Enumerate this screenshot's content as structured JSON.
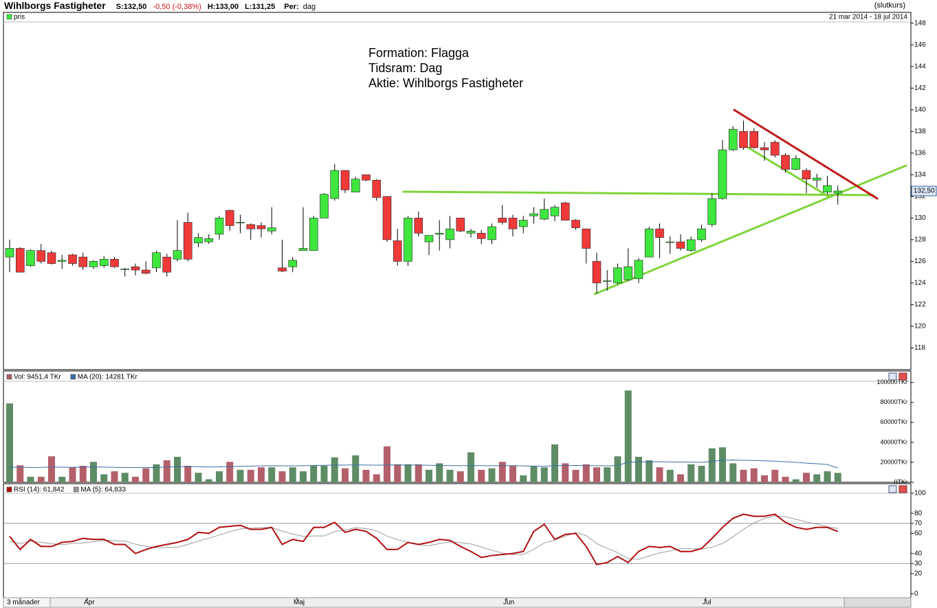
{
  "header": {
    "title": "Wihlborgs Fastigheter",
    "last": "S:132,50",
    "change": "-0,50 (-0,38%)",
    "high": "H:133,00",
    "low": "L:131,25",
    "period_label": "Per:",
    "period": "dag",
    "mode": "(slutkurs)"
  },
  "chart_data": [
    {
      "type": "candlestick",
      "legend": "pris",
      "date_range": "21 mar 2014 - 18 jul 2014",
      "annotation": [
        "Formation: Flagga",
        "Tidsram: Dag",
        "Aktie: Wihlborgs Fastigheter"
      ],
      "categories": [
        null,
        null,
        null,
        null,
        null,
        null,
        null,
        null,
        "Apr",
        null,
        null,
        null,
        null,
        null,
        null,
        null,
        null,
        null,
        null,
        null,
        null,
        null,
        null,
        null,
        null,
        null,
        null,
        null,
        "Maj",
        null,
        null,
        null,
        null,
        null,
        null,
        null,
        null,
        null,
        null,
        null,
        null,
        null,
        null,
        null,
        null,
        null,
        null,
        null,
        "Jun",
        null,
        null,
        null,
        null,
        null,
        null,
        null,
        null,
        null,
        null,
        null,
        null,
        null,
        null,
        null,
        null,
        null,
        null,
        "Jul",
        null,
        null,
        null,
        null,
        null,
        null,
        null,
        null,
        null,
        null,
        null,
        null
      ],
      "ohlc": [
        [
          126.4,
          128.0,
          125.0,
          127.2
        ],
        [
          127.2,
          127.3,
          125.0,
          125.0
        ],
        [
          125.6,
          127.1,
          125.5,
          127.0
        ],
        [
          127.0,
          127.6,
          125.8,
          126.0
        ],
        [
          126.8,
          127.0,
          125.7,
          125.8
        ],
        [
          126.0,
          126.6,
          125.3,
          126.1
        ],
        [
          126.6,
          126.7,
          125.6,
          125.8
        ],
        [
          126.4,
          126.8,
          125.2,
          125.5
        ],
        [
          125.5,
          126.1,
          125.3,
          126.0
        ],
        [
          125.6,
          126.5,
          125.4,
          126.2
        ],
        [
          126.2,
          126.4,
          125.4,
          125.5
        ],
        [
          125.3,
          125.4,
          124.6,
          125.3
        ],
        [
          125.5,
          125.8,
          124.7,
          125.2
        ],
        [
          125.2,
          126.0,
          124.8,
          124.9
        ],
        [
          125.4,
          127.0,
          125.0,
          126.8
        ],
        [
          126.4,
          126.7,
          124.6,
          125.0
        ],
        [
          126.2,
          129.8,
          126.0,
          127.0
        ],
        [
          129.6,
          130.5,
          126.0,
          126.2
        ],
        [
          127.7,
          128.6,
          127.3,
          128.2
        ],
        [
          127.8,
          128.5,
          127.6,
          128.1
        ],
        [
          128.5,
          130.2,
          128.0,
          130.0
        ],
        [
          130.7,
          130.8,
          128.8,
          129.3
        ],
        [
          129.6,
          130.3,
          128.6,
          129.6
        ],
        [
          129.4,
          129.5,
          128.0,
          129.0
        ],
        [
          129.3,
          129.6,
          128.2,
          129.0
        ],
        [
          128.8,
          131.0,
          128.5,
          129.1
        ],
        [
          125.4,
          128.0,
          125.0,
          125.1
        ],
        [
          125.5,
          126.4,
          125.0,
          126.1
        ],
        [
          127.0,
          131.0,
          127.0,
          127.2
        ],
        [
          127.0,
          130.2,
          127.0,
          130.0
        ],
        [
          130.0,
          132.3,
          130.0,
          132.2
        ],
        [
          131.8,
          135.0,
          131.6,
          134.4
        ],
        [
          134.4,
          134.4,
          132.3,
          132.6
        ],
        [
          132.4,
          133.8,
          132.4,
          133.6
        ],
        [
          134.0,
          134.0,
          133.4,
          133.5
        ],
        [
          133.5,
          133.6,
          131.6,
          131.9
        ],
        [
          132.0,
          132.0,
          127.8,
          128.0
        ],
        [
          127.9,
          129.0,
          125.6,
          126.0
        ],
        [
          126.0,
          130.2,
          125.6,
          130.0
        ],
        [
          130.0,
          130.6,
          128.3,
          128.6
        ],
        [
          127.8,
          128.3,
          126.6,
          128.4
        ],
        [
          128.5,
          129.8,
          127.0,
          128.6
        ],
        [
          128.0,
          130.2,
          127.2,
          129.0
        ],
        [
          130.0,
          130.0,
          128.7,
          128.8
        ],
        [
          128.6,
          129.0,
          128.2,
          128.8
        ],
        [
          128.6,
          128.9,
          127.6,
          128.1
        ],
        [
          128.0,
          129.5,
          127.6,
          129.2
        ],
        [
          130.0,
          131.2,
          129.4,
          129.6
        ],
        [
          130.0,
          130.3,
          128.3,
          129.0
        ],
        [
          129.2,
          130.2,
          128.6,
          129.8
        ],
        [
          130.2,
          131.0,
          129.5,
          130.4
        ],
        [
          129.9,
          131.8,
          129.8,
          130.8
        ],
        [
          130.2,
          131.2,
          129.7,
          131.0
        ],
        [
          131.4,
          131.5,
          129.8,
          129.8
        ],
        [
          129.8,
          129.9,
          128.9,
          129.1
        ],
        [
          129.0,
          129.0,
          125.8,
          127.2
        ],
        [
          126.0,
          126.8,
          123.0,
          124.0
        ],
        [
          124.2,
          125.2,
          123.3,
          124.2
        ],
        [
          124.0,
          125.8,
          123.9,
          125.4
        ],
        [
          124.3,
          127.2,
          124.2,
          125.5
        ],
        [
          124.4,
          126.3,
          124.0,
          126.1
        ],
        [
          126.4,
          129.2,
          126.4,
          129.0
        ],
        [
          129.0,
          129.5,
          126.3,
          128.2
        ],
        [
          127.8,
          128.3,
          126.7,
          127.8
        ],
        [
          127.8,
          128.5,
          127.0,
          127.2
        ],
        [
          127.0,
          128.3,
          126.9,
          128.0
        ],
        [
          128.0,
          129.4,
          127.8,
          129.0
        ],
        [
          129.4,
          132.3,
          129.2,
          131.8
        ],
        [
          131.8,
          137.2,
          131.7,
          136.3
        ],
        [
          136.3,
          138.5,
          136.2,
          138.2
        ],
        [
          138.0,
          139.0,
          136.3,
          136.5
        ],
        [
          138.0,
          138.3,
          136.4,
          136.5
        ],
        [
          136.5,
          137.0,
          135.3,
          136.3
        ],
        [
          137.0,
          137.2,
          135.6,
          135.8
        ],
        [
          135.8,
          136.0,
          134.2,
          134.5
        ],
        [
          134.5,
          135.8,
          134.4,
          135.5
        ],
        [
          134.4,
          134.6,
          132.3,
          133.6
        ],
        [
          133.5,
          134.1,
          132.8,
          133.7
        ],
        [
          132.4,
          133.9,
          132.2,
          133.0
        ],
        [
          132.3,
          133.0,
          131.25,
          132.5
        ]
      ],
      "up_color": "#3ee63e",
      "down_color": "#f03a3a",
      "ylim": [
        116,
        149
      ],
      "yticks": [
        118,
        120,
        122,
        124,
        126,
        128,
        130,
        132,
        134,
        136,
        138,
        140,
        142,
        144,
        146,
        148
      ],
      "last_label": "132,50"
    },
    {
      "type": "volume",
      "up_color": "#5e8c66",
      "series": [
        {
          "name": "Vol: 9451,4 TKr",
          "color": "#b3606b",
          "values": [
            79000,
            17000,
            5500,
            5500,
            26000,
            5500,
            15000,
            16500,
            20500,
            8000,
            11000,
            9500,
            5500,
            14000,
            18000,
            22000,
            25500,
            16500,
            9500,
            3000,
            11000,
            20500,
            12500,
            12500,
            15000,
            15000,
            11000,
            15000,
            11000,
            16500,
            16500,
            25000,
            14000,
            27000,
            12500,
            8000,
            36000,
            18000,
            18000,
            18000,
            12500,
            19000,
            12500,
            11000,
            30000,
            12500,
            14000,
            20500,
            16500,
            7000,
            16500,
            15000,
            38000,
            19000,
            12500,
            18000,
            15000,
            15000,
            26000,
            92000,
            25500,
            22000,
            15000,
            12500,
            8000,
            18000,
            16500,
            34000,
            35000,
            19000,
            12500,
            14000,
            7000,
            12500,
            5500,
            3000,
            9500,
            8000,
            11000,
            9451.4
          ]
        },
        {
          "name": "MA (20): 14281 TKr",
          "color": "#3b6ea5",
          "values": [
            15000,
            15200,
            14800,
            14900,
            15300,
            15100,
            15000,
            15200,
            15400,
            15200,
            15000,
            14900,
            14800,
            14700,
            14900,
            15200,
            15600,
            15800,
            15600,
            15300,
            15500,
            15800,
            16000,
            16200,
            16400,
            16600,
            16500,
            16400,
            16600,
            16800,
            17000,
            17300,
            17200,
            17500,
            17300,
            17100,
            17400,
            17300,
            17400,
            17200,
            17000,
            16800,
            16700,
            16600,
            16800,
            16700,
            16500,
            16800,
            16600,
            16400,
            16200,
            16100,
            16600,
            16800,
            16900,
            16700,
            16600,
            16500,
            16800,
            20200,
            20400,
            20600,
            20500,
            20400,
            20300,
            20200,
            20000,
            21000,
            22100,
            22300,
            22000,
            21800,
            21500,
            21200,
            20600,
            20000,
            19200,
            18600,
            17800,
            14281
          ]
        }
      ],
      "ylim": [
        0,
        106000
      ],
      "yticks": [
        {
          "value": 0,
          "label": "0TKr"
        },
        {
          "value": 20000,
          "label": "20000TKr"
        },
        {
          "value": 40000,
          "label": "40000TKr"
        },
        {
          "value": 60000,
          "label": "60000TKr"
        },
        {
          "value": 80000,
          "label": "80000TKr"
        },
        {
          "value": 100000,
          "label": "100000TKr"
        }
      ]
    },
    {
      "type": "rsi",
      "series": [
        {
          "name": "RSI (14): 61,842",
          "color": "#b00d0d",
          "values": [
            57,
            44,
            54,
            47,
            47,
            51,
            52,
            55,
            54,
            54,
            49,
            49,
            40,
            44,
            47,
            49,
            51,
            54,
            61,
            60,
            66,
            67,
            68,
            64,
            64,
            66,
            49,
            54,
            52,
            66,
            66,
            71,
            61,
            64,
            62,
            55,
            44,
            44,
            51,
            49,
            51,
            54,
            53,
            47,
            42,
            36,
            38,
            39,
            40,
            42,
            62,
            69,
            54,
            59,
            60,
            47,
            29,
            31,
            37,
            31,
            42,
            47,
            46,
            47,
            42,
            42,
            45,
            55,
            66,
            75,
            79,
            77,
            77,
            79,
            71,
            66,
            64,
            66,
            66,
            61.842
          ]
        },
        {
          "name": "MA (5): 64,833",
          "color": "#9a9a9a",
          "values": [
            52,
            50,
            52,
            51,
            49.8,
            48.6,
            50.2,
            50.4,
            51.8,
            53.2,
            52.8,
            52.2,
            49.2,
            47.2,
            45.8,
            45.8,
            46.2,
            49,
            52.4,
            55,
            58.4,
            61.6,
            64.4,
            65,
            65.8,
            65.8,
            62.2,
            59.4,
            57,
            57.4,
            57.4,
            61.8,
            63.2,
            65.6,
            64.8,
            62.6,
            57.2,
            53.8,
            51.2,
            48.6,
            47.8,
            49.8,
            51.6,
            50.8,
            49.4,
            46.4,
            43.2,
            40.4,
            39,
            39,
            44.2,
            50.4,
            53.4,
            57.2,
            60.8,
            57.8,
            49.8,
            45.2,
            40.8,
            35,
            34,
            37.6,
            40.6,
            42.6,
            44.8,
            44.8,
            44.4,
            46.2,
            50,
            56.6,
            64,
            70.4,
            74.8,
            77.4,
            76.6,
            74,
            71.4,
            69.2,
            66.6,
            64.833
          ]
        }
      ],
      "ylim": [
        -4,
        104
      ],
      "yticks": [
        0,
        20,
        30,
        40,
        60,
        70,
        80,
        100
      ],
      "levels": [
        30,
        70
      ],
      "highlight_tick": 70,
      "highlight_color": "#2a5fb0"
    }
  ],
  "footer": {
    "range": "3 månader"
  }
}
